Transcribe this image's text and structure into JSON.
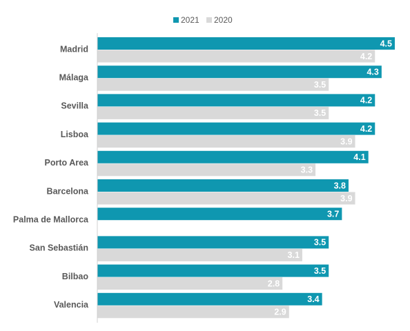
{
  "chart_data": {
    "type": "bar",
    "orientation": "horizontal",
    "categories": [
      "Madrid",
      "Málaga",
      "Sevilla",
      "Lisboa",
      "Porto Area",
      "Barcelona",
      "Palma de Mallorca",
      "San Sebastián",
      "Bilbao",
      "Valencia"
    ],
    "series": [
      {
        "name": "2021",
        "color": "#0f97b0",
        "values": [
          4.5,
          4.3,
          4.2,
          4.2,
          4.1,
          3.8,
          3.7,
          3.5,
          3.5,
          3.4
        ]
      },
      {
        "name": "2020",
        "color": "#d9d9d9",
        "values": [
          4.2,
          3.5,
          3.5,
          3.9,
          3.3,
          3.9,
          null,
          3.1,
          2.8,
          2.9
        ]
      }
    ],
    "legend": "top"
  }
}
